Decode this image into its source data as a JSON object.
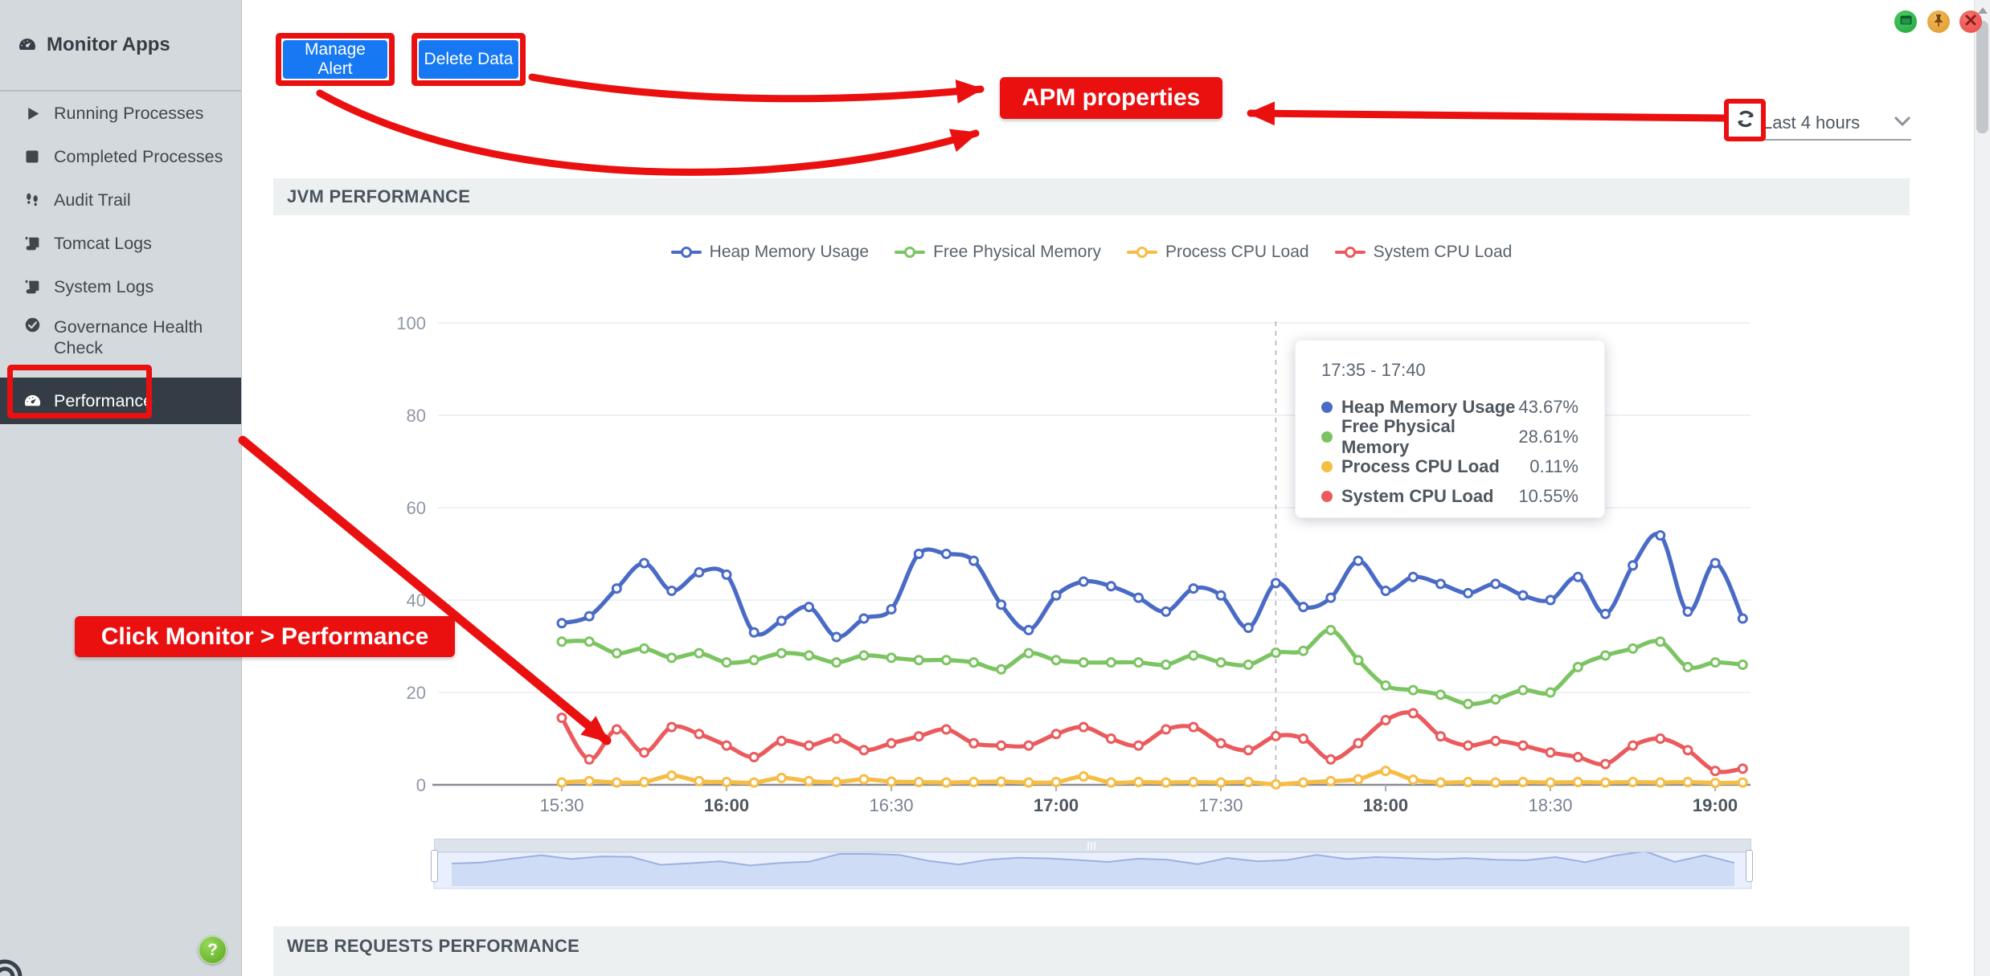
{
  "window": {
    "buttons": [
      {
        "name": "maximize",
        "color": "#2fae4c"
      },
      {
        "name": "pin",
        "color": "#e5a33c"
      },
      {
        "name": "close",
        "color": "#ef5350"
      }
    ]
  },
  "scrollbar": {
    "present": true
  },
  "sidebar": {
    "title": "Monitor Apps",
    "items": [
      {
        "label": "Running Processes",
        "icon": "play-icon",
        "active": false
      },
      {
        "label": "Completed Processes",
        "icon": "stop-square-icon",
        "active": false
      },
      {
        "label": "Audit Trail",
        "icon": "footprints-icon",
        "active": false
      },
      {
        "label": "Tomcat Logs",
        "icon": "scroll-icon",
        "active": false
      },
      {
        "label": "System Logs",
        "icon": "scroll-icon",
        "active": false
      },
      {
        "label": "Governance Health Check",
        "icon": "check-circle-icon",
        "active": false
      },
      {
        "label": "Performance",
        "icon": "gauge-icon",
        "active": true
      }
    ],
    "help_label": "?"
  },
  "toolbar": {
    "manage_alert": "Manage Alert",
    "delete_data": "Delete Data",
    "time_range": "Last 4 hours"
  },
  "annotations": {
    "accent_color": "#ea1010",
    "apm_label": "APM properties",
    "click_label": "Click Monitor > Performance"
  },
  "sections": {
    "jvm": "JVM PERFORMANCE",
    "web": "WEB REQUESTS PERFORMANCE"
  },
  "chart_data": {
    "type": "line",
    "title": "JVM PERFORMANCE",
    "ylabel": "",
    "xlabel": "",
    "ylim": [
      0,
      100
    ],
    "y_ticks": [
      0,
      20,
      40,
      60,
      80,
      100
    ],
    "grid": true,
    "legend_position": "top",
    "x_start": "15:30",
    "interval_minutes": 5,
    "x_axis": [
      {
        "label": "15:30",
        "bold": false
      },
      {
        "label": "16:00",
        "bold": true
      },
      {
        "label": "16:30",
        "bold": false
      },
      {
        "label": "17:00",
        "bold": true
      },
      {
        "label": "17:30",
        "bold": false
      },
      {
        "label": "18:00",
        "bold": true
      },
      {
        "label": "18:30",
        "bold": false
      },
      {
        "label": "19:00",
        "bold": true
      }
    ],
    "series": [
      {
        "name": "Heap Memory Usage",
        "color": "#4a6bc5",
        "values": [
          35,
          36.5,
          42.5,
          48,
          42,
          46,
          45.5,
          33,
          35.5,
          38.5,
          32,
          36,
          38,
          50,
          50,
          48.5,
          39,
          33.5,
          41,
          44,
          43,
          40.5,
          37.5,
          42.5,
          41,
          34,
          43.67,
          38.5,
          40.5,
          48.5,
          42,
          45,
          43.5,
          41.5,
          43.5,
          41,
          40,
          45,
          37,
          47.5,
          54,
          37.5,
          48,
          36
        ]
      },
      {
        "name": "Free Physical Memory",
        "color": "#7cc462",
        "values": [
          31,
          31,
          28.5,
          29.5,
          27.5,
          28.5,
          26.5,
          27,
          28.5,
          28,
          26.5,
          28,
          27.5,
          27,
          27,
          26.5,
          25,
          28.5,
          27,
          26.5,
          26.5,
          26.5,
          26,
          28,
          26.5,
          26,
          28.61,
          29,
          33.5,
          27,
          21.5,
          20.5,
          19.5,
          17.5,
          18.5,
          20.5,
          20,
          25.5,
          28,
          29.5,
          31,
          25.5,
          26.5,
          26
        ]
      },
      {
        "name": "Process CPU Load",
        "color": "#f6bd45",
        "values": [
          0.5,
          0.8,
          0.5,
          0.6,
          2,
          0.8,
          0.6,
          0.5,
          1.5,
          0.8,
          0.6,
          1.2,
          0.7,
          0.6,
          0.5,
          0.6,
          0.7,
          0.5,
          0.6,
          1.8,
          0.5,
          0.6,
          0.5,
          0.6,
          0.5,
          0.6,
          0.11,
          0.5,
          0.8,
          1.2,
          3,
          1.1,
          0.5,
          0.6,
          0.5,
          0.6,
          0.5,
          0.6,
          0.5,
          0.6,
          0.5,
          0.6,
          0.4,
          0.5
        ]
      },
      {
        "name": "System CPU Load",
        "color": "#eb5a5c",
        "values": [
          14.5,
          5.5,
          12,
          7,
          12.5,
          11,
          8.5,
          6,
          9.5,
          8.5,
          10,
          7.5,
          9,
          10.5,
          12,
          9,
          8.5,
          8.5,
          11,
          12.5,
          10,
          8.5,
          12,
          12.5,
          9,
          7.5,
          10.55,
          10,
          5.5,
          9,
          14,
          15.5,
          10.5,
          8.5,
          9.5,
          8.5,
          7,
          6,
          4.5,
          8.5,
          10,
          7.5,
          3,
          3.5
        ]
      }
    ],
    "tooltip": {
      "title": "17:35 - 17:40",
      "anchor_index": 26,
      "rows": [
        {
          "label": "Heap Memory Usage",
          "value": "43.67%"
        },
        {
          "label": "Free Physical Memory",
          "value": "28.61%"
        },
        {
          "label": "Process CPU Load",
          "value": "0.11%"
        },
        {
          "label": "System CPU Load",
          "value": "10.55%"
        }
      ]
    },
    "navigator": {
      "present": true
    }
  }
}
